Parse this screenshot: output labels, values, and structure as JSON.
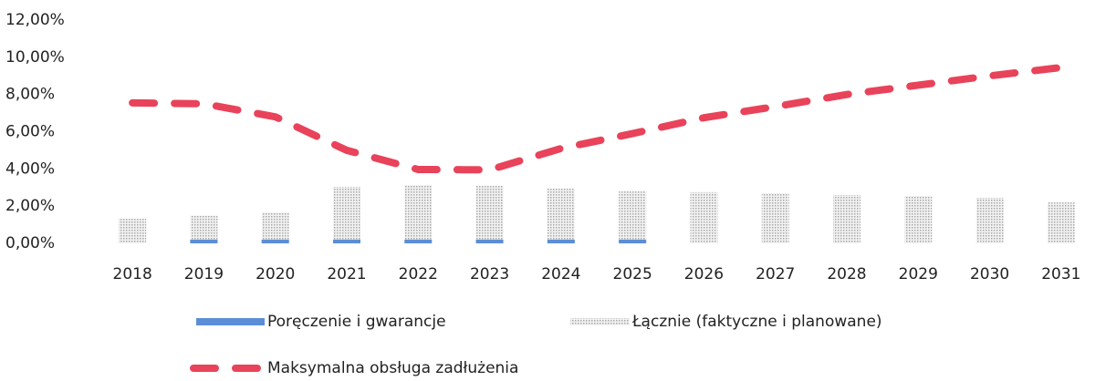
{
  "chart_data": {
    "type": "bar_line",
    "categories": [
      "2018",
      "2019",
      "2020",
      "2021",
      "2022",
      "2023",
      "2024",
      "2025",
      "2026",
      "2027",
      "2028",
      "2029",
      "2030",
      "2031"
    ],
    "series": [
      {
        "name": "Poręczenie i gwarancje",
        "type": "bar",
        "color": "#5b8ed6",
        "values": [
          0,
          0.2,
          0.2,
          0.2,
          0.2,
          0.2,
          0.2,
          0.2,
          0,
          0,
          0,
          0,
          0,
          0
        ]
      },
      {
        "name": "Łącznie (faktyczne i planowane)",
        "type": "bar",
        "color": "#a8a8a8",
        "values": [
          1.32,
          1.5,
          1.67,
          3.04,
          3.14,
          3.1,
          2.94,
          2.8,
          2.75,
          2.7,
          2.6,
          2.55,
          2.45,
          2.2
        ]
      },
      {
        "name": "Maksymalna obsługa zadłużenia",
        "type": "line",
        "color": "#e8435a",
        "values": [
          7.55,
          7.5,
          6.8,
          5.0,
          3.97,
          3.95,
          5.1,
          5.9,
          6.75,
          7.35,
          8.0,
          8.5,
          9.0,
          9.45
        ]
      }
    ],
    "ylim": [
      0,
      12
    ],
    "yticks": [
      {
        "value": 0,
        "label": "0,00%"
      },
      {
        "value": 2,
        "label": "2,00%"
      },
      {
        "value": 4,
        "label": "4,00%"
      },
      {
        "value": 6,
        "label": "6,00%"
      },
      {
        "value": 8,
        "label": "8,00%"
      },
      {
        "value": 10,
        "label": "10,00%"
      },
      {
        "value": 12,
        "label": "12,00%"
      }
    ],
    "grid": false,
    "legend": "bottom"
  }
}
